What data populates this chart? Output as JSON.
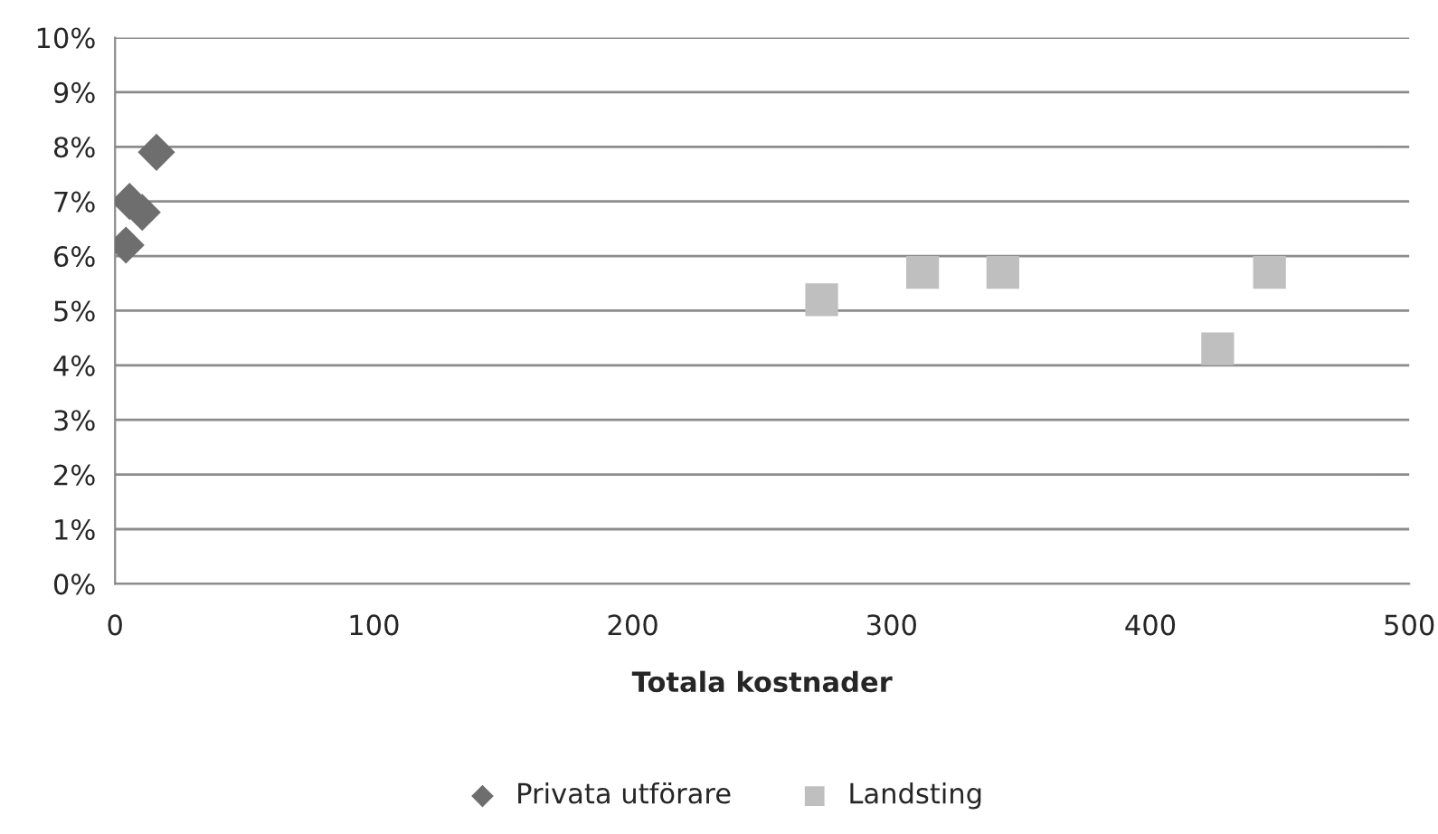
{
  "chart_data": {
    "type": "scatter",
    "xlabel": "Totala kostnader",
    "series": [
      {
        "name": "Privata utförare",
        "color": "#6e6e6e",
        "marker": "diamond",
        "x": [
          16,
          5.6,
          10.5,
          4.2
        ],
        "values": [
          7.9,
          7.0,
          6.8,
          6.2
        ]
      },
      {
        "name": "Landsting",
        "color": "#bfbfbf",
        "marker": "square",
        "x": [
          273,
          312,
          343,
          426,
          446
        ],
        "values": [
          5.2,
          5.7,
          5.7,
          4.3,
          5.7
        ]
      }
    ],
    "xlim": [
      0,
      500
    ],
    "xticks": [
      0,
      100,
      200,
      300,
      400,
      500
    ],
    "ylim": [
      0,
      10
    ],
    "yticks": [
      {
        "value": 0,
        "label": "0%"
      },
      {
        "value": 1,
        "label": "1%"
      },
      {
        "value": 2,
        "label": "2%"
      },
      {
        "value": 3,
        "label": "3%"
      },
      {
        "value": 4,
        "label": "4%"
      },
      {
        "value": 5,
        "label": "5%"
      },
      {
        "value": 6,
        "label": "6%"
      },
      {
        "value": 7,
        "label": "7%"
      },
      {
        "value": 8,
        "label": "8%"
      },
      {
        "value": 9,
        "label": "9%"
      },
      {
        "value": 10,
        "label": "10%"
      }
    ],
    "grid": "y",
    "legend": "bottom"
  }
}
